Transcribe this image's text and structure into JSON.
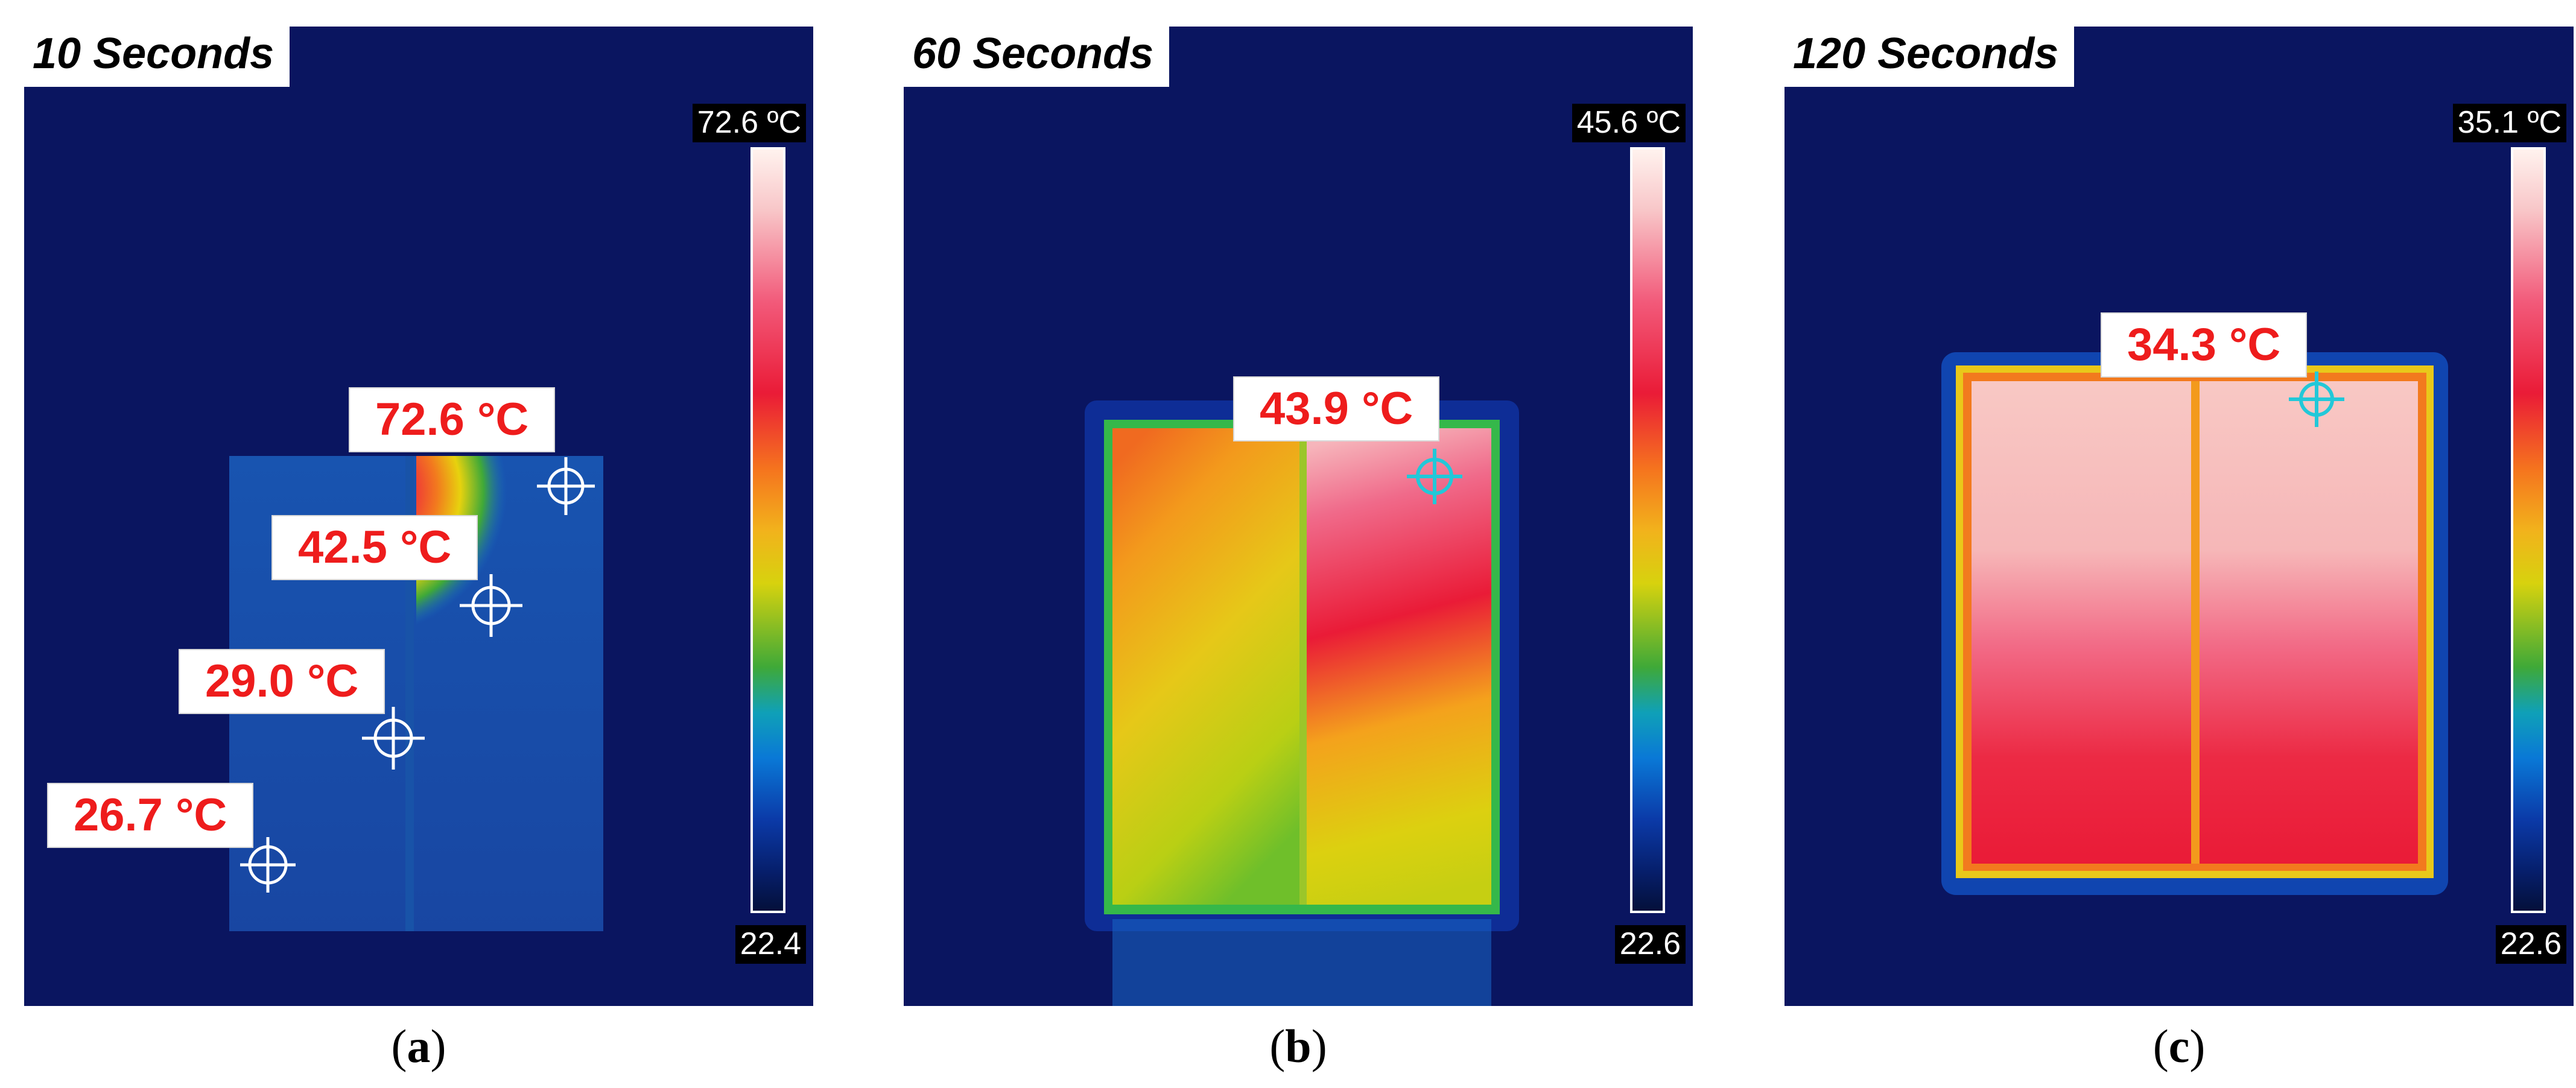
{
  "panels": [
    {
      "id": "a",
      "time_label": "10 Seconds",
      "scale_max": "72.6 ºC",
      "scale_min": "22.4",
      "readings": [
        "72.6 °C",
        "42.5 °C",
        "29.0 °C",
        "26.7 °C"
      ],
      "caption_letter": "a"
    },
    {
      "id": "b",
      "time_label": "60 Seconds",
      "scale_max": "45.6 ºC",
      "scale_min": "22.6",
      "readings": [
        "43.9 °C"
      ],
      "caption_letter": "b"
    },
    {
      "id": "c",
      "time_label": "120 Seconds",
      "scale_max": "35.1 ºC",
      "scale_min": "22.6",
      "readings": [
        "34.3 °C"
      ],
      "caption_letter": "c"
    }
  ],
  "colors": {
    "background": "#0a1560",
    "reading_text": "#ee1c1c",
    "crosshair": "#ffffff",
    "crosshair_highlight": "#22c8d8"
  }
}
